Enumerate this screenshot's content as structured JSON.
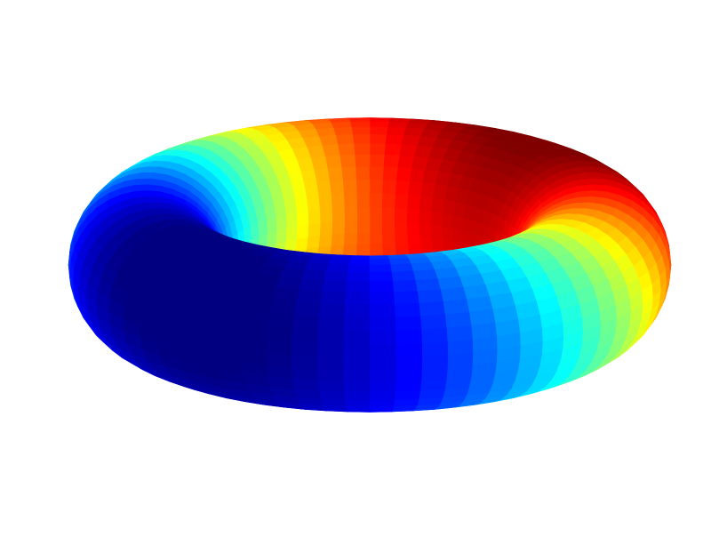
{
  "figure": {
    "background": "#ffffff",
    "surface": "torus",
    "colormap": "jet",
    "axes_visible": false,
    "colormap_stops": [
      "#00008f",
      "#0000ff",
      "#00ffff",
      "#ffff00",
      "#ff0000",
      "#800000"
    ]
  }
}
